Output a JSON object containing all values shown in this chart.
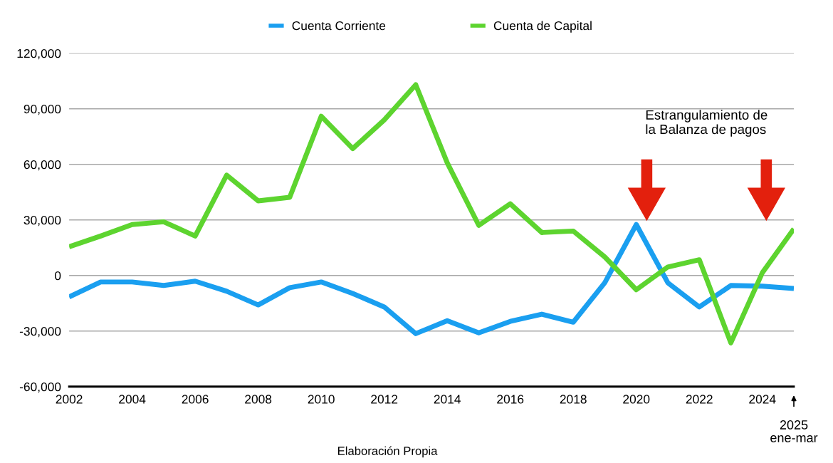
{
  "chart_data": {
    "type": "line",
    "x": [
      2002,
      2003,
      2004,
      2005,
      2006,
      2007,
      2008,
      2009,
      2010,
      2011,
      2012,
      2013,
      2014,
      2015,
      2016,
      2017,
      2018,
      2019,
      2020,
      2021,
      2022,
      2023,
      2024,
      2025
    ],
    "series": [
      {
        "name": "Cuenta Corriente",
        "color": "#1a9ff0",
        "values": [
          -11600,
          -3500,
          -3500,
          -5400,
          -3100,
          -8500,
          -15900,
          -6600,
          -3500,
          -9700,
          -17000,
          -31400,
          -24400,
          -31000,
          -24800,
          -20900,
          -25200,
          -3900,
          27500,
          -3900,
          -17000,
          -5400,
          -5800,
          -7000
        ]
      },
      {
        "name": "Cuenta de Capital",
        "color": "#5dd42f",
        "values": [
          15500,
          21300,
          27500,
          29000,
          21300,
          54200,
          40300,
          42200,
          86000,
          68500,
          84000,
          103000,
          60800,
          27100,
          38700,
          23200,
          24000,
          10000,
          -7700,
          4600,
          8500,
          -36400,
          1500,
          25200
        ]
      }
    ],
    "xlim": [
      2002,
      2025
    ],
    "xticks": [
      2002,
      2004,
      2006,
      2008,
      2010,
      2012,
      2014,
      2016,
      2018,
      2020,
      2022,
      2024
    ],
    "ylim": [
      -60000,
      120000
    ],
    "yticks": [
      {
        "value": -60000,
        "label": "-60,000"
      },
      {
        "value": -30000,
        "label": "-30,000"
      },
      0,
      {
        "value": 30000,
        "label": "30,000"
      },
      {
        "value": 60000,
        "label": "60,000"
      },
      {
        "value": 90000,
        "label": "90,000"
      },
      {
        "value": 120000,
        "label": "120,000"
      }
    ],
    "grid": "y",
    "legend": "top",
    "annotations": [
      "Estrangulamiento de\nla Balanza de pagos",
      "2025\nene-mar",
      "Elaboración Propia"
    ]
  }
}
